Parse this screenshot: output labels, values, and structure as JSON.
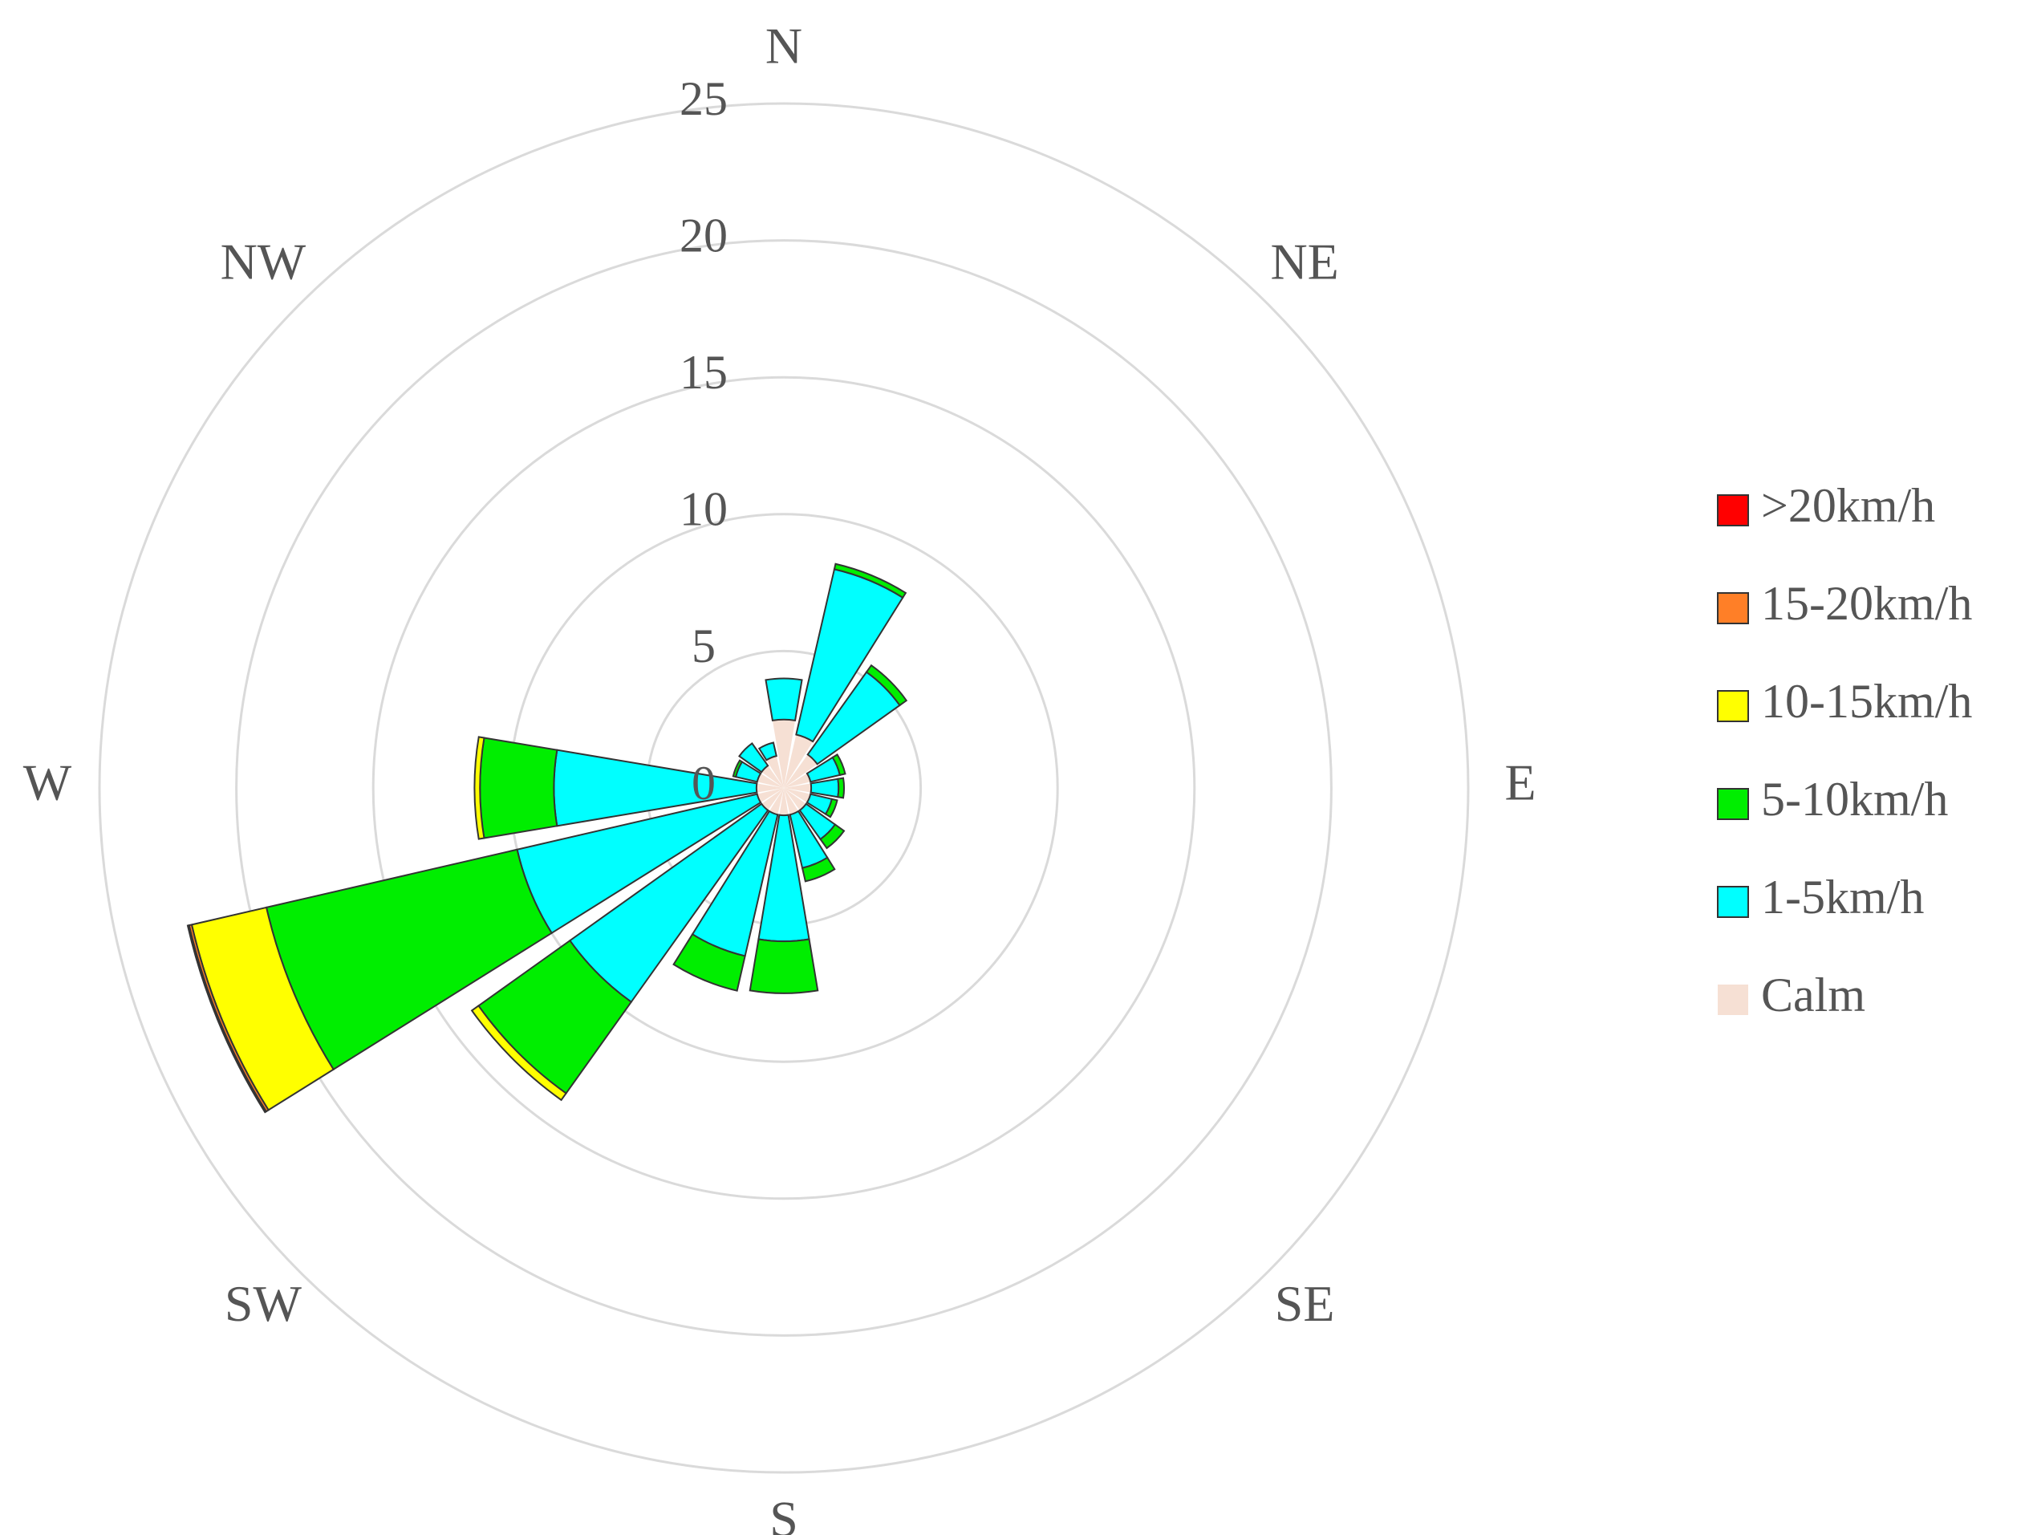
{
  "chart_data": {
    "type": "windrose",
    "categories": [
      "N",
      null,
      "NE",
      null,
      "E",
      null,
      "SE",
      null,
      "S",
      null,
      "SW",
      null,
      "W",
      null,
      "NW",
      null
    ],
    "series": [
      {
        "name": "Calm",
        "color": "#f6e0d4",
        "values": [
          2.5,
          2,
          1.5,
          1,
          1,
          1,
          1,
          1,
          1,
          1,
          1,
          1,
          1,
          1,
          1,
          1.2
        ]
      },
      {
        "name": "1-5km/h",
        "color": "#00ffff",
        "values": [
          1.5,
          6.2,
          3.7,
          1.1,
          1.0,
          0.8,
          1.3,
          2.0,
          4.6,
          5.3,
          8.6,
          9.0,
          7.4,
          0.8,
          1.0,
          0.5
        ]
      },
      {
        "name": "5-10km/h",
        "color": "#00ee00",
        "values": [
          0,
          0.2,
          0.3,
          0.2,
          0.2,
          0.2,
          0.4,
          0.5,
          1.9,
          1.3,
          4.1,
          9.4,
          2.7,
          0.1,
          0,
          0
        ]
      },
      {
        "name": "10-15km/h",
        "color": "#ffff00",
        "values": [
          0,
          0,
          0,
          0,
          0,
          0,
          0,
          0,
          0,
          0,
          0.3,
          2.8,
          0.2,
          0,
          0,
          0
        ]
      },
      {
        "name": "15-20km/h",
        "color": "#ff7f27",
        "values": [
          0,
          0,
          0,
          0,
          0,
          0,
          0,
          0,
          0,
          0,
          0,
          0.1,
          0,
          0,
          0,
          0
        ]
      },
      {
        "name": ">20km/h",
        "color": "#ff0000",
        "values": [
          0,
          0,
          0,
          0,
          0,
          0,
          0,
          0,
          0,
          0,
          0,
          0.05,
          0,
          0,
          0,
          0
        ]
      }
    ],
    "ylim": [
      0,
      25
    ],
    "yticks": [
      0,
      5,
      10,
      15,
      20,
      25
    ],
    "grid": true
  }
}
